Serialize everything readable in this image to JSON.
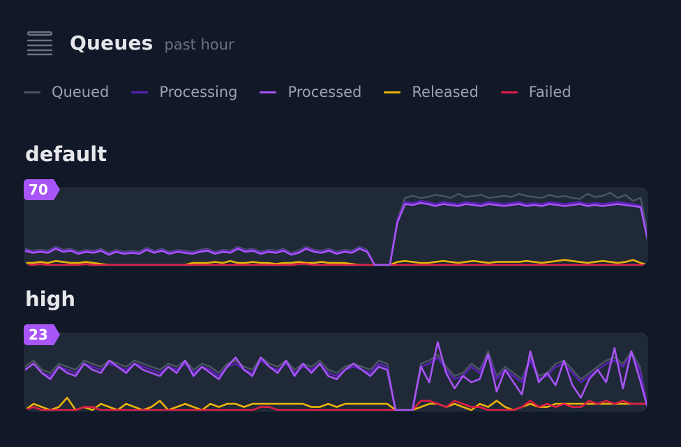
{
  "header": {
    "title": "Queues",
    "subtitle": "past hour",
    "icon": "queue-list-icon"
  },
  "legend": [
    {
      "label": "Queued",
      "color": "#4b5563"
    },
    {
      "label": "Processing",
      "color": "#5b21b6"
    },
    {
      "label": "Processed",
      "color": "#a855f7"
    },
    {
      "label": "Released",
      "color": "#eab308"
    },
    {
      "label": "Failed",
      "color": "#e11d48"
    }
  ],
  "chart_data": [
    {
      "type": "line",
      "title": "default",
      "max_label": "70",
      "ylim": [
        0,
        70
      ],
      "series": [
        {
          "name": "Queued",
          "color": "#4b5563",
          "values": [
            16,
            14,
            15,
            14,
            18,
            15,
            16,
            13,
            15,
            14,
            16,
            12,
            15,
            13,
            14,
            13,
            17,
            14,
            16,
            13,
            15,
            14,
            13,
            15,
            16,
            13,
            15,
            14,
            18,
            15,
            16,
            13,
            15,
            14,
            16,
            12,
            14,
            18,
            15,
            14,
            16,
            13,
            15,
            14,
            18,
            15,
            0,
            0,
            0,
            45,
            66,
            68,
            66,
            67,
            69,
            68,
            66,
            70,
            67,
            68,
            69,
            66,
            67,
            68,
            67,
            70,
            68,
            67,
            66,
            69,
            67,
            68,
            66,
            65,
            70,
            67,
            68,
            71,
            66,
            69,
            63,
            66,
            30
          ]
        },
        {
          "name": "Processing",
          "color": "#5b21b6",
          "values": [
            15,
            13,
            14,
            13,
            17,
            14,
            15,
            12,
            14,
            13,
            15,
            11,
            14,
            12,
            13,
            12,
            16,
            13,
            15,
            12,
            14,
            13,
            12,
            14,
            15,
            12,
            14,
            13,
            17,
            14,
            15,
            12,
            14,
            13,
            15,
            11,
            13,
            17,
            14,
            13,
            15,
            12,
            14,
            13,
            17,
            14,
            0,
            0,
            0,
            44,
            62,
            61,
            63,
            62,
            60,
            62,
            61,
            60,
            62,
            61,
            60,
            62,
            61,
            60,
            61,
            62,
            60,
            61,
            60,
            62,
            61,
            60,
            61,
            62,
            60,
            61,
            60,
            61,
            62,
            61,
            60,
            58,
            25
          ]
        },
        {
          "name": "Processed",
          "color": "#a855f7",
          "values": [
            14,
            12,
            13,
            12,
            16,
            13,
            14,
            11,
            13,
            12,
            14,
            10,
            13,
            11,
            12,
            11,
            15,
            12,
            14,
            11,
            13,
            12,
            11,
            13,
            14,
            11,
            13,
            12,
            16,
            13,
            14,
            11,
            13,
            12,
            14,
            10,
            12,
            16,
            13,
            12,
            14,
            11,
            13,
            12,
            16,
            13,
            0,
            0,
            0,
            42,
            60,
            59,
            61,
            60,
            58,
            60,
            59,
            58,
            60,
            59,
            58,
            60,
            59,
            58,
            59,
            60,
            58,
            59,
            58,
            60,
            59,
            58,
            59,
            60,
            58,
            59,
            58,
            59,
            60,
            59,
            58,
            57,
            22
          ]
        },
        {
          "name": "Released",
          "color": "#eab308",
          "values": [
            2,
            2,
            3,
            2,
            4,
            3,
            2,
            2,
            3,
            2,
            1,
            0,
            0,
            0,
            0,
            0,
            0,
            0,
            0,
            0,
            0,
            0,
            2,
            2,
            2,
            3,
            2,
            4,
            2,
            2,
            3,
            2,
            2,
            1,
            2,
            2,
            3,
            2,
            2,
            3,
            2,
            2,
            2,
            1,
            0,
            0,
            0,
            0,
            0,
            3,
            4,
            3,
            2,
            2,
            3,
            4,
            3,
            2,
            3,
            4,
            3,
            2,
            3,
            3,
            3,
            3,
            4,
            3,
            2,
            3,
            4,
            5,
            4,
            3,
            2,
            3,
            4,
            3,
            2,
            3,
            5,
            2,
            0
          ]
        },
        {
          "name": "Failed",
          "color": "#e11d48",
          "values": [
            0,
            0,
            1,
            0,
            0,
            0,
            0,
            0,
            1,
            0,
            0,
            0,
            0,
            0,
            0,
            0,
            0,
            0,
            0,
            0,
            0,
            0,
            0,
            0,
            0,
            0,
            0,
            0,
            0,
            0,
            0,
            0,
            0,
            0,
            0,
            0,
            1,
            1,
            0,
            0,
            0,
            0,
            0,
            0,
            0,
            0,
            0,
            0,
            0,
            0,
            0,
            0,
            0,
            0,
            0,
            0,
            0,
            0,
            0,
            0,
            0,
            0,
            0,
            0,
            0,
            0,
            0,
            0,
            0,
            0,
            0,
            0,
            0,
            0,
            0,
            0,
            0,
            0,
            0,
            0,
            0,
            0,
            0
          ]
        }
      ]
    },
    {
      "type": "line",
      "title": "high",
      "max_label": "23",
      "ylim": [
        0,
        23
      ],
      "series": [
        {
          "name": "Queued",
          "color": "#4b5563",
          "values": [
            14,
            16,
            13,
            12,
            15,
            14,
            13,
            16,
            15,
            14,
            16,
            15,
            14,
            16,
            15,
            14,
            13,
            15,
            14,
            16,
            13,
            15,
            14,
            12,
            15,
            16,
            14,
            13,
            17,
            15,
            14,
            16,
            13,
            15,
            14,
            16,
            13,
            12,
            14,
            15,
            14,
            13,
            16,
            15,
            0,
            0,
            0,
            15,
            16,
            18,
            14,
            11,
            12,
            15,
            13,
            19,
            11,
            14,
            12,
            10,
            17,
            11,
            12,
            15,
            16,
            13,
            10,
            12,
            14,
            16,
            17,
            15,
            19,
            14,
            0
          ]
        },
        {
          "name": "Processing",
          "color": "#5b21b6",
          "values": [
            13,
            15,
            12,
            11,
            14,
            13,
            12,
            15,
            14,
            13,
            15,
            14,
            13,
            15,
            14,
            13,
            12,
            14,
            13,
            15,
            12,
            14,
            13,
            11,
            14,
            15,
            13,
            12,
            16,
            14,
            13,
            15,
            12,
            14,
            13,
            15,
            12,
            11,
            13,
            14,
            13,
            12,
            15,
            14,
            0,
            0,
            0,
            14,
            15,
            17,
            13,
            10,
            11,
            14,
            12,
            18,
            10,
            13,
            11,
            9,
            16,
            10,
            11,
            14,
            15,
            12,
            9,
            11,
            13,
            15,
            16,
            14,
            18,
            13,
            0
          ]
        },
        {
          "name": "Processed",
          "color": "#a855f7",
          "values": [
            13,
            15,
            12,
            10,
            14,
            12,
            11,
            15,
            13,
            12,
            16,
            14,
            12,
            15,
            13,
            12,
            11,
            14,
            12,
            16,
            11,
            14,
            12,
            10,
            14,
            17,
            13,
            11,
            17,
            14,
            12,
            16,
            11,
            15,
            12,
            15,
            11,
            10,
            13,
            15,
            13,
            11,
            14,
            13,
            0,
            0,
            0,
            14,
            9,
            22,
            12,
            7,
            11,
            9,
            10,
            18,
            6,
            13,
            9,
            5,
            19,
            9,
            12,
            8,
            16,
            8,
            4,
            10,
            13,
            9,
            20,
            7,
            19,
            10,
            0
          ]
        },
        {
          "name": "Released",
          "color": "#eab308",
          "values": [
            0,
            2,
            1,
            0,
            1,
            4,
            0,
            1,
            0,
            2,
            1,
            0,
            2,
            1,
            0,
            1,
            3,
            0,
            1,
            2,
            1,
            0,
            2,
            1,
            2,
            2,
            1,
            2,
            2,
            2,
            2,
            2,
            2,
            2,
            1,
            1,
            2,
            1,
            2,
            2,
            2,
            2,
            2,
            2,
            0,
            0,
            0,
            1,
            2,
            2,
            1,
            2,
            1,
            0,
            2,
            1,
            3,
            1,
            0,
            1,
            2,
            1,
            1,
            2,
            2,
            2,
            2,
            2,
            2,
            2,
            2,
            2,
            2,
            2,
            2
          ]
        },
        {
          "name": "Failed",
          "color": "#e11d48",
          "values": [
            0,
            1,
            0,
            0,
            0,
            0,
            0,
            1,
            1,
            0,
            0,
            0,
            0,
            0,
            0,
            0,
            0,
            0,
            0,
            0,
            0,
            0,
            0,
            0,
            0,
            0,
            0,
            0,
            1,
            1,
            0,
            0,
            0,
            0,
            0,
            0,
            0,
            0,
            0,
            0,
            0,
            0,
            0,
            0,
            0,
            0,
            0,
            3,
            3,
            2,
            1,
            3,
            2,
            1,
            1,
            0,
            0,
            0,
            0,
            1,
            3,
            1,
            2,
            1,
            2,
            1,
            1,
            3,
            2,
            3,
            2,
            3,
            2,
            2,
            2
          ]
        }
      ]
    }
  ]
}
